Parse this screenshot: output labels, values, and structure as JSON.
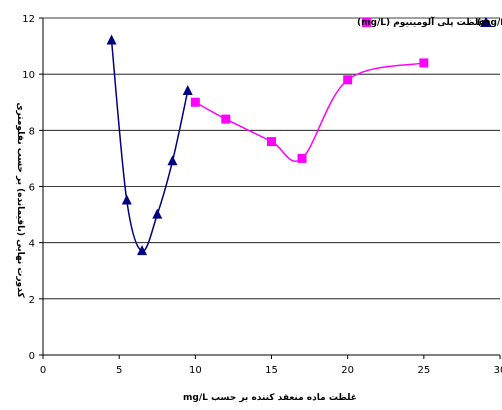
{
  "chart_data": {
    "type": "line",
    "xlabel": "غلظت ماده منعقد کننده بر حسب mg/L",
    "ylabel": "کدورت نهایی (باقیمانده) بر حسب نفلومتری",
    "xlim": [
      0,
      30
    ],
    "ylim": [
      0,
      12
    ],
    "xticks": [
      0,
      5,
      10,
      15,
      20,
      25,
      30
    ],
    "yticks": [
      0,
      2,
      4,
      6,
      8,
      10,
      12
    ],
    "grid": "horizontal",
    "legend_position": "top-right",
    "series": [
      {
        "name": "غلظت کیتوزان (mg/L)",
        "marker": "triangle",
        "color": "#000080",
        "x": [
          4.5,
          5.5,
          6.5,
          7.5,
          8.5,
          9.5
        ],
        "y": [
          11.2,
          5.5,
          3.7,
          5.0,
          6.9,
          9.4
        ]
      },
      {
        "name": "غلظت پلی آلومینیوم (mg/L)",
        "marker": "square",
        "color": "#ff00ff",
        "x": [
          10,
          12,
          15,
          17,
          20,
          25
        ],
        "y": [
          9.0,
          8.4,
          7.6,
          7.0,
          9.8,
          10.4
        ]
      }
    ]
  }
}
